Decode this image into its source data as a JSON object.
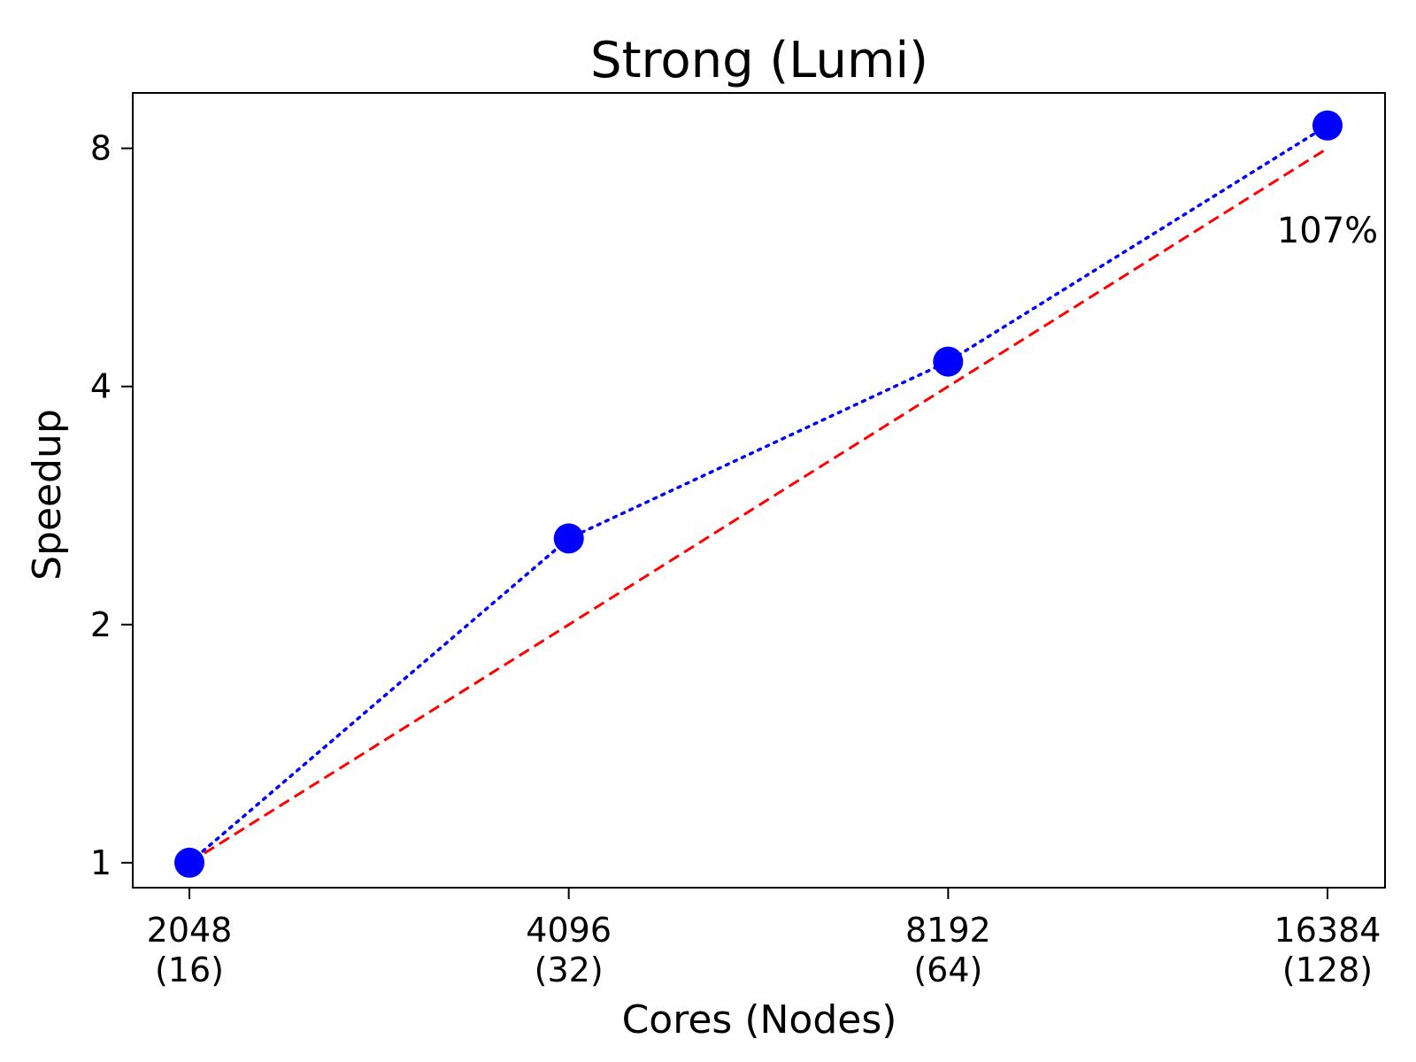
{
  "chart_data": {
    "type": "line",
    "title": "Strong (Lumi)",
    "xlabel": "Cores (Nodes)",
    "ylabel": "Speedup",
    "x_scale": "log2",
    "y_scale": "log2",
    "categories": [
      {
        "cores": "2048",
        "nodes": "(16)"
      },
      {
        "cores": "4096",
        "nodes": "(32)"
      },
      {
        "cores": "8192",
        "nodes": "(64)"
      },
      {
        "cores": "16384",
        "nodes": "(128)"
      }
    ],
    "x": [
      2048,
      4096,
      8192,
      16384
    ],
    "y_ticks": [
      1,
      2,
      4,
      8
    ],
    "y_tick_labels": [
      "1",
      "2",
      "4",
      "8"
    ],
    "ylim": [
      0.93,
      9.4
    ],
    "grid": false,
    "series": [
      {
        "values": [
          1,
          2.57,
          4.3,
          8.55
        ],
        "color": "#0000ff",
        "line_style": "dotted",
        "marker": "circle"
      },
      {
        "values": [
          1,
          2,
          4,
          8
        ],
        "color": "#ff0000",
        "line_style": "dashed",
        "marker": "none"
      }
    ],
    "annotations": [
      {
        "text": "107%",
        "near_x": 16384
      }
    ]
  }
}
